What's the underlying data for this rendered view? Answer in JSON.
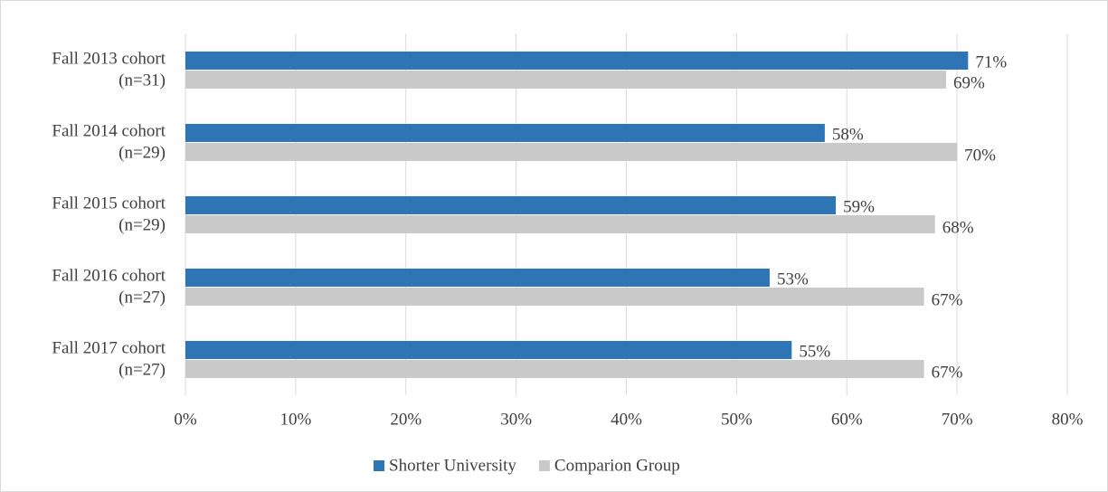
{
  "chart_data": {
    "type": "hbar",
    "categories": [
      [
        "Fall 2013 cohort",
        "(n=31)"
      ],
      [
        "Fall 2014 cohort",
        "(n=29)"
      ],
      [
        "Fall 2015 cohort",
        "(n=29)"
      ],
      [
        "Fall 2016 cohort",
        "(n=27)"
      ],
      [
        "Fall 2017 cohort",
        "(n=27)"
      ]
    ],
    "series": [
      {
        "name": "Shorter University",
        "color": "#2e75b6",
        "values": [
          71,
          58,
          59,
          53,
          55
        ],
        "value_labels": [
          "71%",
          "58%",
          "59%",
          "53%",
          "55%"
        ]
      },
      {
        "name": "Comparion Group",
        "color": "#c9c9c9",
        "values": [
          69,
          70,
          68,
          67,
          67
        ],
        "value_labels": [
          "69%",
          "70%",
          "68%",
          "67%",
          "67%"
        ]
      }
    ],
    "xlim": [
      0,
      80
    ],
    "xticks": [
      {
        "value": 0,
        "label": "0%"
      },
      {
        "value": 10,
        "label": "10%"
      },
      {
        "value": 20,
        "label": "20%"
      },
      {
        "value": 30,
        "label": "30%"
      },
      {
        "value": 40,
        "label": "40%"
      },
      {
        "value": 50,
        "label": "50%"
      },
      {
        "value": 60,
        "label": "60%"
      },
      {
        "value": 70,
        "label": "70%"
      },
      {
        "value": 80,
        "label": "80%"
      }
    ],
    "grid": true,
    "legend": "bottom"
  }
}
